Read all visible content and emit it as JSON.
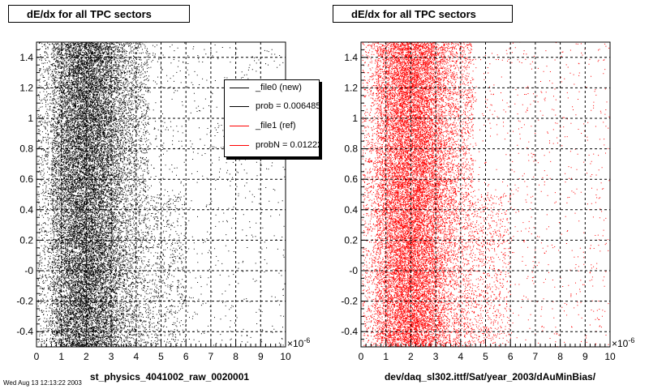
{
  "panels": [
    {
      "title": "dE/dx for all TPC sectors",
      "caption": "st_physics_4041002_raw_0020001",
      "exponent_label": "×10",
      "exponent_power": "-6",
      "legend": [
        {
          "label": "_file0 (new)",
          "color": "#000000"
        },
        {
          "label": "prob = 0.006485",
          "color": "#000000"
        },
        {
          "label": "_file1 (ref)",
          "color": "#ff0000"
        },
        {
          "label": "probN = 0.01222",
          "color": "#ff0000"
        }
      ]
    },
    {
      "title": "dE/dx for all TPC sectors",
      "caption": "dev/daq_sl302.ittf/Sat/year_2003/dAuMinBias/",
      "exponent_label": "×10",
      "exponent_power": "-6"
    }
  ],
  "footer": "Wed Aug 13 12:13:22 2003",
  "chart_data": [
    {
      "type": "scatter",
      "title": "dE/dx for all TPC sectors",
      "xlabel": "st_physics_4041002_raw_0020001",
      "ylabel": "",
      "x_unit_multiplier": "×10^-6",
      "xlim": [
        0,
        10
      ],
      "ylim": [
        -0.5,
        1.5
      ],
      "x_ticks": [
        0,
        1,
        2,
        3,
        4,
        5,
        6,
        7,
        8,
        9,
        10
      ],
      "y_tick_labels": [
        "-0.4",
        "-0.2",
        "-0",
        "0.2",
        "0.4",
        "0.6",
        "0.8",
        "1",
        "1.2",
        "1.4"
      ],
      "y_ticks": [
        -0.4,
        -0.2,
        0,
        0.2,
        0.4,
        0.6,
        0.8,
        1.0,
        1.2,
        1.4
      ],
      "grid": true,
      "marker_color": "#000000",
      "density_peak_x": 2.0,
      "upper_region_ylim": [
        0.5,
        1.5
      ],
      "upper_region_max_x": 4.5,
      "lower_region_max_x": 6.0,
      "legend_position": "top-right"
    },
    {
      "type": "scatter",
      "title": "dE/dx for all TPC sectors",
      "xlabel": "dev/daq_sl302.ittf/Sat/year_2003/dAuMinBias/",
      "ylabel": "",
      "x_unit_multiplier": "×10^-6",
      "xlim": [
        0,
        10
      ],
      "ylim": [
        -0.5,
        1.5
      ],
      "x_ticks": [
        0,
        1,
        2,
        3,
        4,
        5,
        6,
        7,
        8,
        9,
        10
      ],
      "y_tick_labels": [
        "-0.4",
        "-0.2",
        "-0",
        "0.2",
        "0.4",
        "0.6",
        "0.8",
        "1",
        "1.2",
        "1.4"
      ],
      "y_ticks": [
        -0.4,
        -0.2,
        0,
        0.2,
        0.4,
        0.6,
        0.8,
        1.0,
        1.2,
        1.4
      ],
      "grid": true,
      "marker_color": "#ff0000",
      "density_peak_x": 2.0,
      "upper_region_ylim": [
        0.5,
        1.5
      ],
      "upper_region_max_x": 4.5,
      "lower_region_max_x": 6.0
    }
  ]
}
